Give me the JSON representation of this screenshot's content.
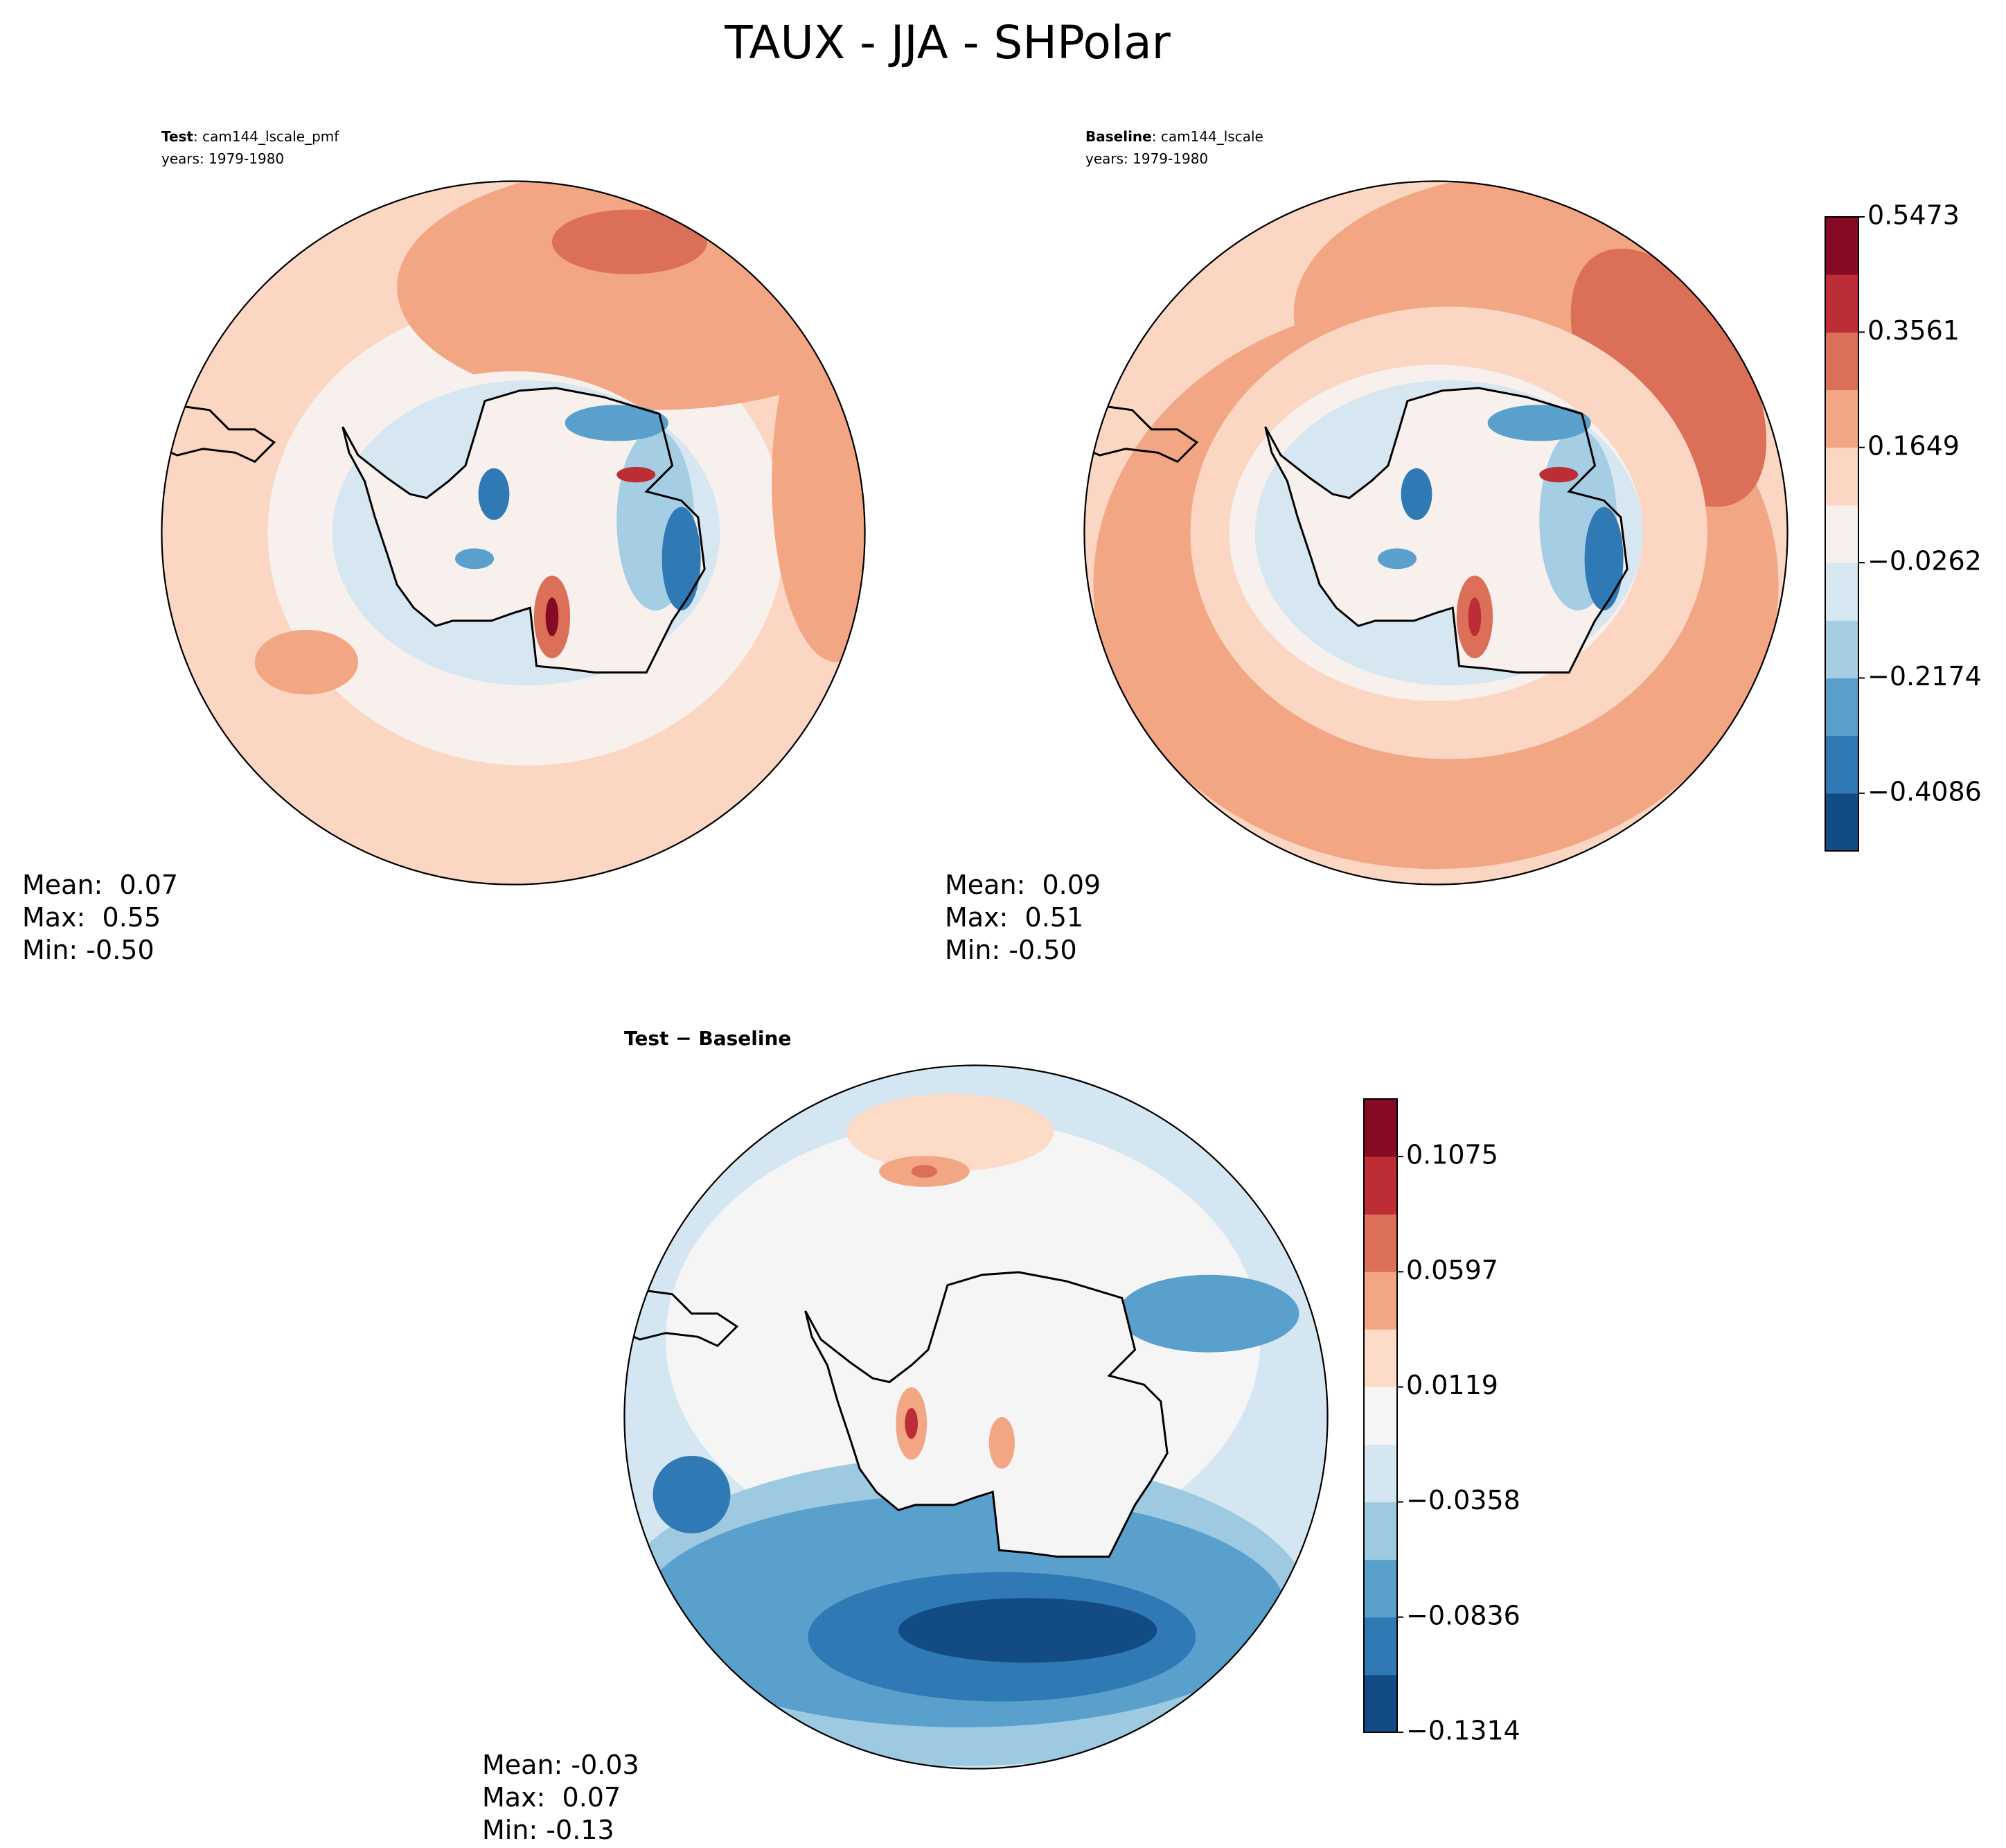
{
  "title": "TAUX - JJA - SHPolar",
  "panels": [
    {
      "label_bold": "Test",
      "label_rest": ": cam144_lscale_pmf",
      "years": "years: 1979-1980",
      "stats": [
        "Mean:  0.07",
        "Max:  0.55",
        "Min: -0.50"
      ]
    },
    {
      "label_bold": "Baseline",
      "label_rest": ": cam144_lscale",
      "years": "years: 1979-1980",
      "stats": [
        "Mean:  0.09",
        "Max:  0.51",
        "Min: -0.50"
      ]
    },
    {
      "label_bold": "Test − Baseline",
      "stats": [
        "Mean: -0.03",
        "Max:  0.07",
        "Min: -0.13"
      ]
    }
  ],
  "colorbars": [
    {
      "lim": [
        -0.5042,
        0.5473
      ],
      "ticks": [
        {
          "value": 0.5473,
          "label": "0.5473"
        },
        {
          "value": 0.3561,
          "label": "0.3561"
        },
        {
          "value": 0.1649,
          "label": "0.1649"
        },
        {
          "value": -0.0262,
          "label": "−0.0262"
        },
        {
          "value": -0.2174,
          "label": "−0.2174"
        },
        {
          "value": -0.4086,
          "label": "−0.4086"
        }
      ],
      "colors": [
        "#134b85",
        "#2f79b5",
        "#5aa0cc",
        "#a5cde3",
        "#d6e7f1",
        "#f7f0ec",
        "#fbd6c2",
        "#f3a683",
        "#dc6f57",
        "#bd2d35",
        "#870a24"
      ]
    },
    {
      "lim": [
        -0.1314,
        0.1314
      ],
      "ticks": [
        {
          "value": 0.1075,
          "label": "0.1075"
        },
        {
          "value": 0.0597,
          "label": "0.0597"
        },
        {
          "value": 0.0119,
          "label": "0.0119"
        },
        {
          "value": -0.0358,
          "label": "−0.0358"
        },
        {
          "value": -0.0836,
          "label": "−0.0836"
        },
        {
          "value": -0.1314,
          "label": "−0.1314"
        }
      ],
      "colors": [
        "#134b85",
        "#2f79b5",
        "#5aa0cc",
        "#9ecae1",
        "#d4e6f1",
        "#f5f5f5",
        "#fcdcc9",
        "#f3a683",
        "#dc6f57",
        "#bd2d35",
        "#870a24"
      ]
    }
  ]
}
